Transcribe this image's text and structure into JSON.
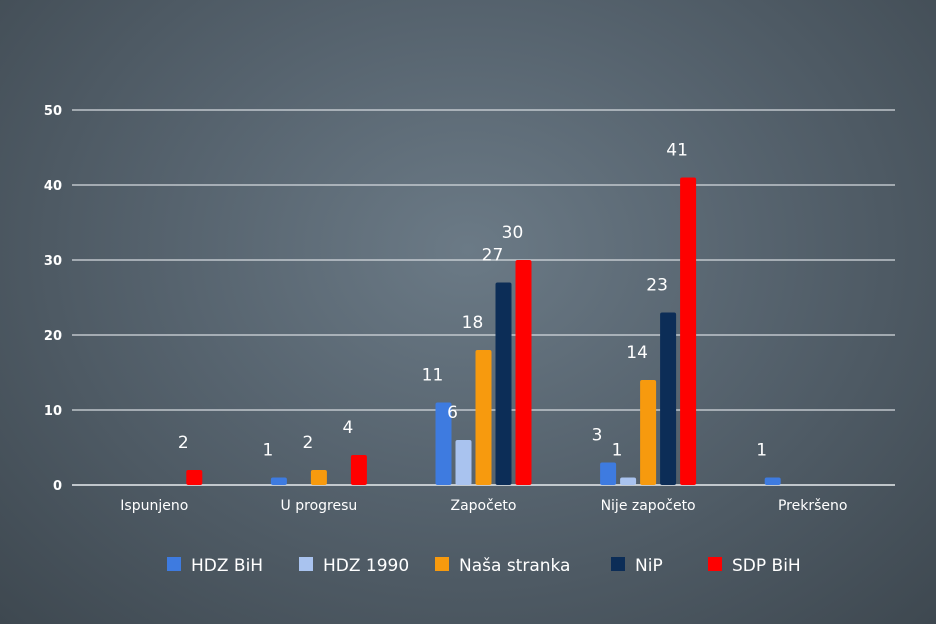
{
  "chart_data": {
    "type": "bar",
    "title": "",
    "xlabel": "",
    "ylabel": "",
    "ylim": [
      0,
      50
    ],
    "yticks": [
      0,
      10,
      20,
      30,
      40,
      50
    ],
    "grid": true,
    "legend_position": "bottom",
    "categories": [
      "Ispunjeno",
      "U progresu",
      "Započeto",
      "Nije započeto",
      "Prekršeno"
    ],
    "series": [
      {
        "name": "HDZ BiH",
        "color": "#3e7be0",
        "values": [
          null,
          1,
          11,
          3,
          1
        ]
      },
      {
        "name": "HDZ 1990",
        "color": "#a9c3ef",
        "values": [
          null,
          null,
          6,
          1,
          null
        ]
      },
      {
        "name": "Naša stranka",
        "color": "#f79a0e",
        "values": [
          null,
          2,
          18,
          14,
          null
        ]
      },
      {
        "name": "NiP",
        "color": "#0c2d57",
        "values": [
          null,
          null,
          27,
          23,
          null
        ]
      },
      {
        "name": "SDP BiH",
        "color": "#ff0000",
        "values": [
          2,
          4,
          30,
          41,
          null
        ]
      }
    ]
  }
}
